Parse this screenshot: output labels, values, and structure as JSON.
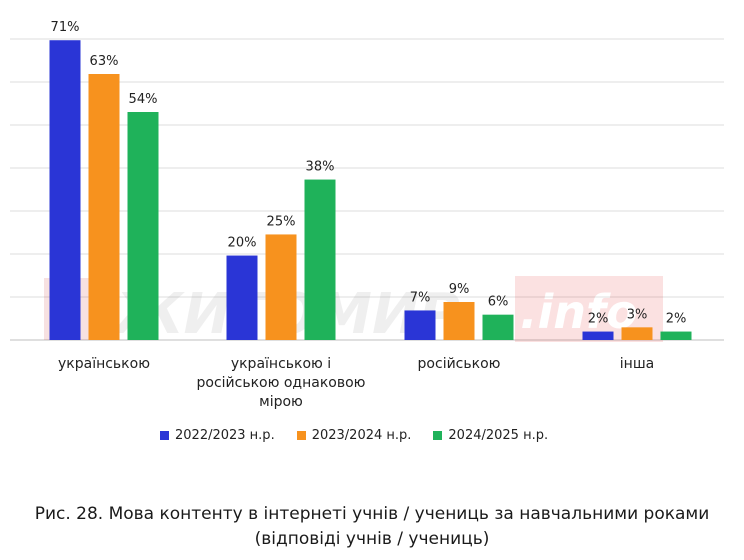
{
  "chart_data": {
    "type": "bar",
    "categories": [
      "українською",
      "українською і російською однаковою мірою",
      "російською",
      "інша"
    ],
    "category_label_lines": [
      [
        "українською"
      ],
      [
        "українською і",
        "російською однаковою",
        "мірою"
      ],
      [
        "російською"
      ],
      [
        "інша"
      ]
    ],
    "series": [
      {
        "name": "2022/2023 н.р.",
        "color": "#2a35d6",
        "values": [
          71,
          20,
          7,
          2
        ]
      },
      {
        "name": "2023/2024 н.р.",
        "color": "#f7921e",
        "values": [
          63,
          25,
          9,
          3
        ]
      },
      {
        "name": "2024/2025 н.р.",
        "color": "#1fb25a",
        "values": [
          54,
          38,
          6,
          2
        ]
      }
    ],
    "value_suffix": "%",
    "ylim": [
      0,
      72
    ],
    "grid": true,
    "legend_position": "bottom",
    "caption_lines": [
      "Рис. 28. Мова контенту в інтернеті учнів / учениць за навчальними роками",
      "(відповіді учнів / учениць)"
    ]
  },
  "watermark": {
    "text": "ЖИТОМИР",
    "suffix": ".info"
  }
}
